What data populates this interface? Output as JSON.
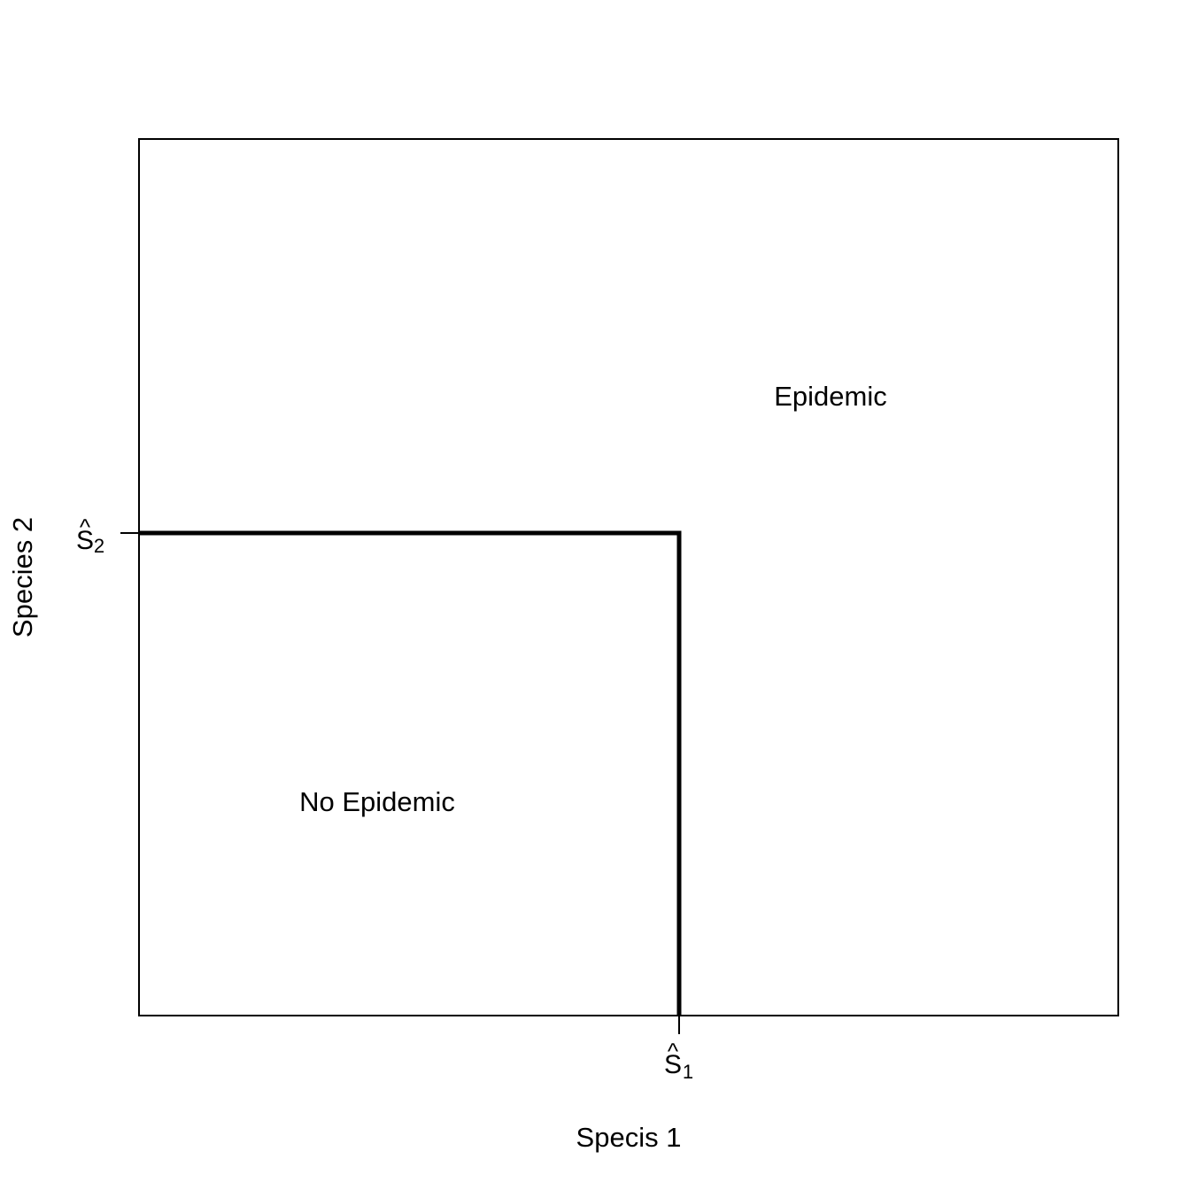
{
  "x_axis_label": "Specis 1",
  "y_axis_label": "Species 2",
  "regions": {
    "upper": "Epidemic",
    "lower": "No Epidemic"
  },
  "thresholds": {
    "x": {
      "symbol": "S",
      "hat": "^",
      "subscript": "1"
    },
    "y": {
      "symbol": "S",
      "hat": "^",
      "subscript": "2"
    }
  },
  "colors": {
    "line": "#000000",
    "background": "#ffffff"
  }
}
